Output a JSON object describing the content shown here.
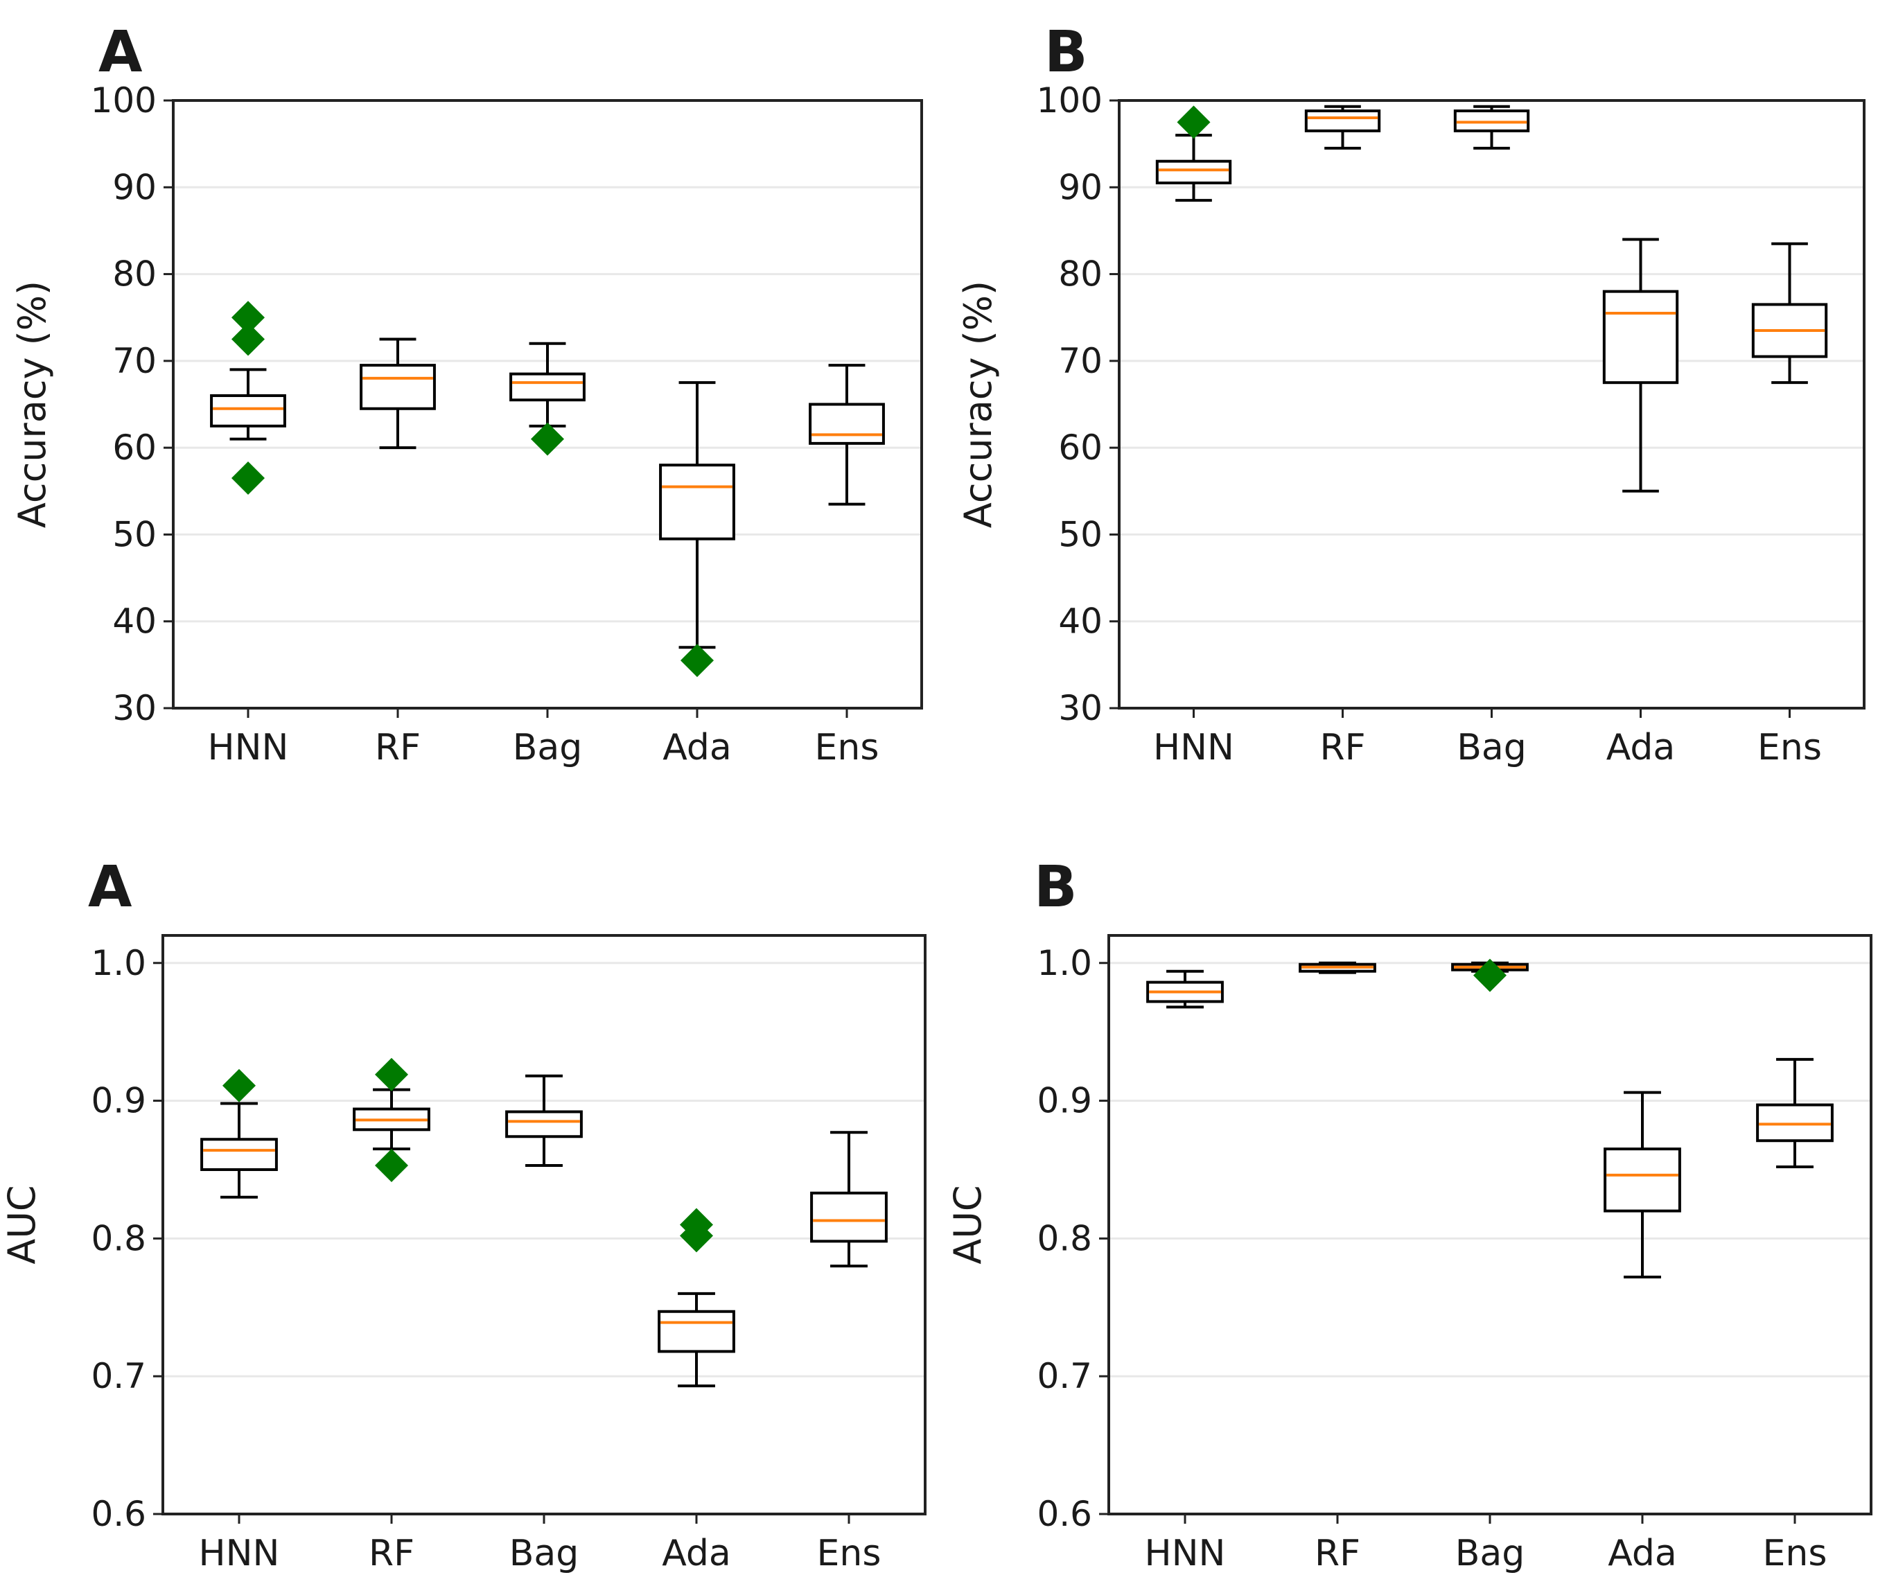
{
  "chart_data": [
    {
      "type": "box",
      "panel": "A",
      "ylabel": "Accuracy (%)",
      "ylim": [
        30,
        100
      ],
      "yticks": [
        30,
        40,
        50,
        60,
        70,
        80,
        90,
        100
      ],
      "grid": true,
      "categories": [
        "HNN",
        "RF",
        "Bag",
        "Ada",
        "Ens"
      ],
      "boxes": [
        {
          "label": "HNN",
          "whislo": 61,
          "q1": 62.5,
          "med": 64.5,
          "q3": 66,
          "whishi": 69,
          "fliers": [
            75,
            72.5,
            56.5
          ]
        },
        {
          "label": "RF",
          "whislo": 60,
          "q1": 64.5,
          "med": 68,
          "q3": 69.5,
          "whishi": 72.5,
          "fliers": []
        },
        {
          "label": "Bag",
          "whislo": 62.5,
          "q1": 65.5,
          "med": 67.5,
          "q3": 68.5,
          "whishi": 72,
          "fliers": [
            61
          ]
        },
        {
          "label": "Ada",
          "whislo": 37,
          "q1": 49.5,
          "med": 55.5,
          "q3": 58,
          "whishi": 67.5,
          "fliers": [
            35.5
          ]
        },
        {
          "label": "Ens",
          "whislo": 53.5,
          "q1": 60.5,
          "med": 61.5,
          "q3": 65,
          "whishi": 69.5,
          "fliers": []
        }
      ]
    },
    {
      "type": "box",
      "panel": "B",
      "ylabel": "Accuracy (%)",
      "ylim": [
        30,
        100
      ],
      "yticks": [
        30,
        40,
        50,
        60,
        70,
        80,
        90,
        100
      ],
      "grid": true,
      "categories": [
        "HNN",
        "RF",
        "Bag",
        "Ada",
        "Ens"
      ],
      "boxes": [
        {
          "label": "HNN",
          "whislo": 88.5,
          "q1": 90.5,
          "med": 92,
          "q3": 93,
          "whishi": 96,
          "fliers": [
            97.5
          ]
        },
        {
          "label": "RF",
          "whislo": 94.5,
          "q1": 96.5,
          "med": 98,
          "q3": 98.8,
          "whishi": 99.3,
          "fliers": []
        },
        {
          "label": "Bag",
          "whislo": 94.5,
          "q1": 96.5,
          "med": 97.5,
          "q3": 98.8,
          "whishi": 99.3,
          "fliers": []
        },
        {
          "label": "Ada",
          "whislo": 55,
          "q1": 67.5,
          "med": 75.5,
          "q3": 78,
          "whishi": 84,
          "fliers": []
        },
        {
          "label": "Ens",
          "whislo": 67.5,
          "q1": 70.5,
          "med": 73.5,
          "q3": 76.5,
          "whishi": 83.5,
          "fliers": []
        }
      ]
    },
    {
      "type": "box",
      "panel": "A",
      "ylabel": "AUC",
      "ylim": [
        0.6,
        1.02
      ],
      "yticks": [
        0.6,
        0.7,
        0.8,
        0.9,
        1.0
      ],
      "ytick_labels": [
        "0.6",
        "0.7",
        "0.8",
        "0.9",
        "1.0"
      ],
      "grid": true,
      "categories": [
        "HNN",
        "RF",
        "Bag",
        "Ada",
        "Ens"
      ],
      "boxes": [
        {
          "label": "HNN",
          "whislo": 0.83,
          "q1": 0.85,
          "med": 0.864,
          "q3": 0.872,
          "whishi": 0.898,
          "fliers": [
            0.911
          ]
        },
        {
          "label": "RF",
          "whislo": 0.865,
          "q1": 0.879,
          "med": 0.886,
          "q3": 0.894,
          "whishi": 0.908,
          "fliers": [
            0.919,
            0.853
          ]
        },
        {
          "label": "Bag",
          "whislo": 0.853,
          "q1": 0.874,
          "med": 0.885,
          "q3": 0.892,
          "whishi": 0.918,
          "fliers": []
        },
        {
          "label": "Ada",
          "whislo": 0.693,
          "q1": 0.718,
          "med": 0.739,
          "q3": 0.747,
          "whishi": 0.76,
          "fliers": [
            0.81,
            0.802
          ]
        },
        {
          "label": "Ens",
          "whislo": 0.78,
          "q1": 0.798,
          "med": 0.813,
          "q3": 0.833,
          "whishi": 0.877,
          "fliers": []
        }
      ]
    },
    {
      "type": "box",
      "panel": "B",
      "ylabel": "AUC",
      "ylim": [
        0.6,
        1.02
      ],
      "yticks": [
        0.6,
        0.7,
        0.8,
        0.9,
        1.0
      ],
      "ytick_labels": [
        "0.6",
        "0.7",
        "0.8",
        "0.9",
        "1.0"
      ],
      "grid": true,
      "categories": [
        "HNN",
        "RF",
        "Bag",
        "Ada",
        "Ens"
      ],
      "boxes": [
        {
          "label": "HNN",
          "whislo": 0.968,
          "q1": 0.972,
          "med": 0.979,
          "q3": 0.986,
          "whishi": 0.994,
          "fliers": []
        },
        {
          "label": "RF",
          "whislo": 0.993,
          "q1": 0.994,
          "med": 0.997,
          "q3": 0.999,
          "whishi": 1.0,
          "fliers": []
        },
        {
          "label": "Bag",
          "whislo": 0.994,
          "q1": 0.995,
          "med": 0.997,
          "q3": 0.999,
          "whishi": 1.0,
          "fliers": [
            0.991
          ]
        },
        {
          "label": "Ada",
          "whislo": 0.772,
          "q1": 0.82,
          "med": 0.846,
          "q3": 0.865,
          "whishi": 0.906,
          "fliers": []
        },
        {
          "label": "Ens",
          "whislo": 0.852,
          "q1": 0.871,
          "med": 0.883,
          "q3": 0.897,
          "whishi": 0.93,
          "fliers": []
        }
      ]
    }
  ],
  "colors": {
    "box": "#000000",
    "median": "#ff7f0e",
    "flier": "#007a00",
    "grid": "#e8e8e8",
    "axes": "#222222"
  }
}
